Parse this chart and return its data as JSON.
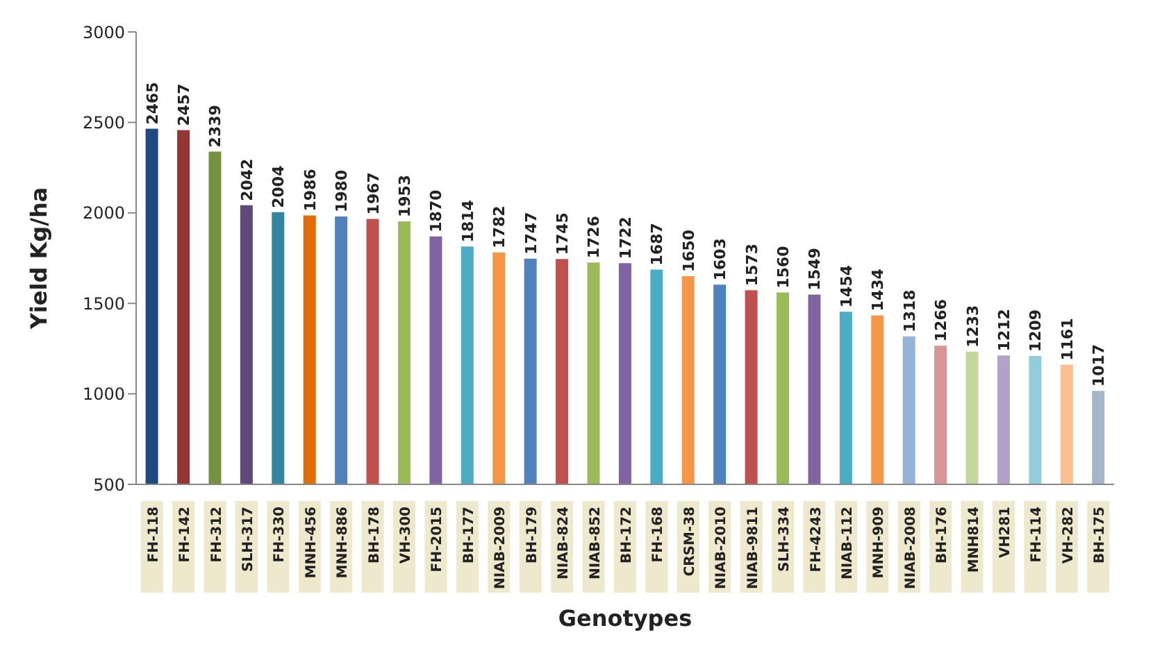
{
  "chart_data": {
    "type": "bar",
    "xlabel": "Genotypes",
    "ylabel": "Yield Kg/ha",
    "categories": [
      "FH-118",
      "FH-142",
      "FH-312",
      "SLH-317",
      "FH-330",
      "MNH-456",
      "MNH-886",
      "BH-178",
      "VH-300",
      "FH-2015",
      "BH-177",
      "NIAB-2009",
      "BH-179",
      "NIAB-824",
      "NIAB-852",
      "BH-172",
      "FH-168",
      "CRSM-38",
      "NIAB-2010",
      "NIAB-9811",
      "SLH-334",
      "FH-4243",
      "NIAB-112",
      "MNH-909",
      "NIAB-2008",
      "BH-176",
      "MNH814",
      "VH281",
      "FH-114",
      "VH-282",
      "BH-175"
    ],
    "values": [
      2465,
      2457,
      2339,
      2042,
      2004,
      1986,
      1980,
      1967,
      1953,
      1870,
      1814,
      1782,
      1747,
      1745,
      1726,
      1722,
      1687,
      1650,
      1603,
      1573,
      1560,
      1549,
      1454,
      1434,
      1318,
      1266,
      1233,
      1212,
      1209,
      1161,
      1017
    ],
    "colors": [
      "#1f497d",
      "#943634",
      "#76923c",
      "#5f497a",
      "#31859c",
      "#e36c09",
      "#4f81bd",
      "#c0504d",
      "#9bbb59",
      "#8064a2",
      "#4bacc6",
      "#f79646",
      "#4f81bd",
      "#c0504d",
      "#9bbb59",
      "#8064a2",
      "#4bacc6",
      "#f79646",
      "#4f81bd",
      "#c0504d",
      "#9bbb59",
      "#8064a2",
      "#4bacc6",
      "#f79646",
      "#95b3d7",
      "#d99694",
      "#c3d69b",
      "#b2a2c7",
      "#92cddc",
      "#fac08f",
      "#a5b6ca"
    ],
    "ylim": [
      500,
      3000
    ],
    "yticks": [
      500,
      1000,
      1500,
      2000,
      2500,
      3000
    ],
    "grid": false,
    "data_labels": true
  }
}
